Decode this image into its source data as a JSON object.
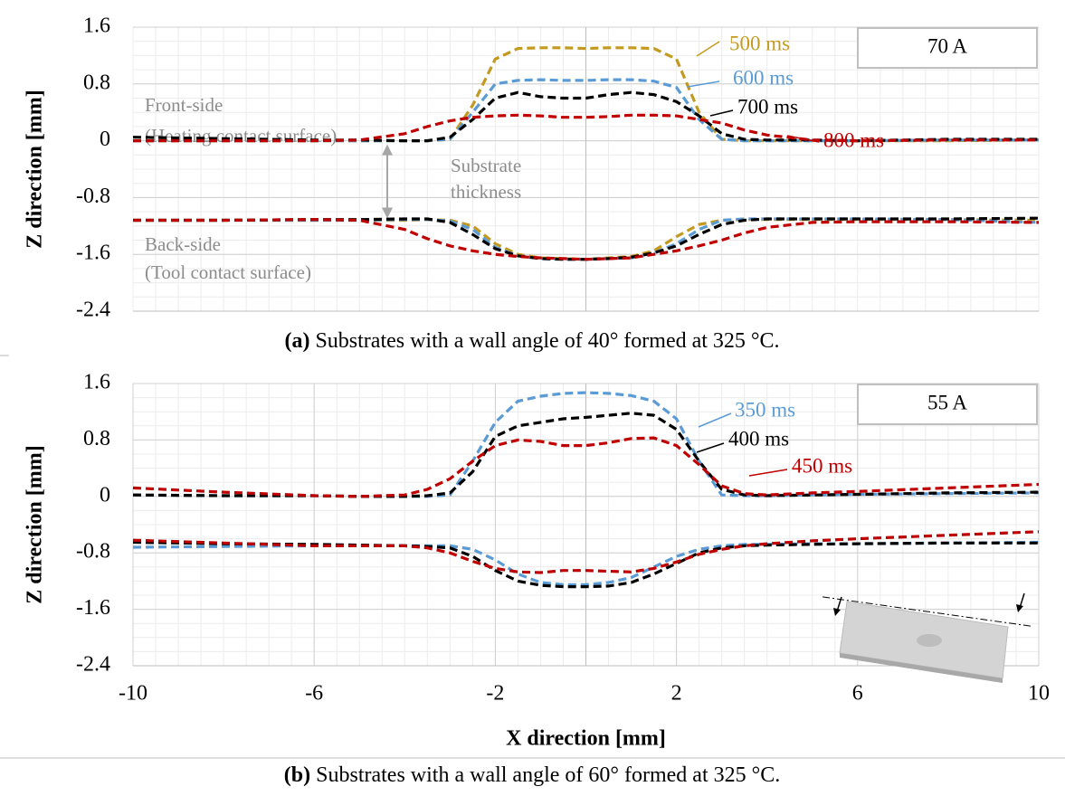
{
  "chart_data": [
    {
      "type": "line",
      "box_label": "70 A",
      "annotations": [
        "Front-side",
        "(Heating contact surface)",
        "Substrate",
        "thickness",
        "Back-side",
        "(Tool contact surface)"
      ],
      "caption_label": "(a)",
      "caption": " Substrates with a wall angle of 40° formed at 325 °C.",
      "ylabel": "Z direction [mm]",
      "xlim": [
        -10,
        10
      ],
      "ylim": [
        -2.4,
        1.6
      ],
      "yticks": [
        1.6,
        0.8,
        0,
        -0.8,
        -1.6,
        -2.4
      ],
      "grid": true,
      "x": [
        -10,
        -8,
        -6,
        -5,
        -4,
        -3.5,
        -3,
        -2.5,
        -2,
        -1.5,
        -1,
        -0.5,
        0,
        0.5,
        1,
        1.5,
        2,
        2.5,
        3,
        3.5,
        4,
        5,
        6,
        8,
        10
      ],
      "series": [
        {
          "name": "500 ms",
          "color": "#c39a1f",
          "values": [
            0,
            0,
            0,
            0,
            0,
            0,
            0.02,
            0.5,
            1.15,
            1.3,
            1.31,
            1.31,
            1.3,
            1.31,
            1.31,
            1.3,
            1.15,
            0.4,
            0.02,
            0,
            0,
            0,
            0,
            0,
            0.01
          ],
          "back_values": [
            -1.12,
            -1.12,
            -1.12,
            -1.12,
            -1.12,
            -1.11,
            -1.12,
            -1.2,
            -1.45,
            -1.6,
            -1.65,
            -1.66,
            -1.67,
            -1.65,
            -1.63,
            -1.55,
            -1.35,
            -1.18,
            -1.12,
            -1.11,
            -1.11,
            -1.11,
            -1.11,
            -1.11,
            -1.12
          ]
        },
        {
          "name": "600 ms",
          "color": "#5b9bd5",
          "values": [
            0,
            0,
            0,
            0,
            0,
            0,
            0.02,
            0.4,
            0.8,
            0.85,
            0.86,
            0.85,
            0.85,
            0.86,
            0.86,
            0.84,
            0.75,
            0.3,
            0.02,
            0,
            0,
            0,
            0,
            0.01,
            0.01
          ],
          "back_values": [
            -1.12,
            -1.12,
            -1.12,
            -1.12,
            -1.11,
            -1.11,
            -1.13,
            -1.25,
            -1.5,
            -1.62,
            -1.66,
            -1.67,
            -1.67,
            -1.66,
            -1.65,
            -1.58,
            -1.45,
            -1.25,
            -1.12,
            -1.1,
            -1.1,
            -1.1,
            -1.1,
            -1.11,
            -1.15
          ]
        },
        {
          "name": "700 ms",
          "color": "#000000",
          "values": [
            0.05,
            0.03,
            0.01,
            0.01,
            0,
            0,
            0.05,
            0.3,
            0.6,
            0.68,
            0.62,
            0.6,
            0.6,
            0.65,
            0.68,
            0.65,
            0.55,
            0.35,
            0.1,
            0.02,
            0.01,
            0.01,
            0,
            0.02,
            0.02
          ],
          "back_values": [
            -1.12,
            -1.12,
            -1.11,
            -1.11,
            -1.1,
            -1.1,
            -1.15,
            -1.32,
            -1.52,
            -1.62,
            -1.66,
            -1.67,
            -1.67,
            -1.66,
            -1.64,
            -1.58,
            -1.48,
            -1.32,
            -1.18,
            -1.12,
            -1.1,
            -1.1,
            -1.1,
            -1.1,
            -1.09
          ]
        },
        {
          "name": "800 ms",
          "color": "#c00000",
          "values": [
            0,
            0,
            0,
            0.01,
            0.1,
            0.2,
            0.28,
            0.33,
            0.35,
            0.36,
            0.35,
            0.33,
            0.33,
            0.34,
            0.36,
            0.36,
            0.35,
            0.3,
            0.25,
            0.15,
            0.08,
            0.01,
            0,
            0.01,
            0.01
          ],
          "back_values": [
            -1.12,
            -1.12,
            -1.11,
            -1.12,
            -1.25,
            -1.38,
            -1.48,
            -1.55,
            -1.6,
            -1.63,
            -1.65,
            -1.66,
            -1.67,
            -1.66,
            -1.65,
            -1.6,
            -1.55,
            -1.48,
            -1.4,
            -1.3,
            -1.22,
            -1.15,
            -1.14,
            -1.14,
            -1.15
          ]
        }
      ]
    },
    {
      "type": "line",
      "box_label": "55 A",
      "caption_label": "(b)",
      "caption": " Substrates with a wall angle of 60° formed at 325 °C.",
      "ylabel": "Z direction [mm]",
      "xlabel": "X direction [mm]",
      "xlim": [
        -10,
        10
      ],
      "xticks": [
        -10,
        -6,
        -2,
        2,
        6,
        10
      ],
      "ylim": [
        -2.4,
        1.6
      ],
      "yticks": [
        1.6,
        0.8,
        0,
        -0.8,
        -1.6,
        -2.4
      ],
      "grid": true,
      "x": [
        -10,
        -8,
        -6,
        -5,
        -4,
        -3.5,
        -3,
        -2.5,
        -2,
        -1.5,
        -1,
        -0.5,
        0,
        0.5,
        1,
        1.5,
        2,
        2.5,
        3,
        3.5,
        4,
        5,
        6,
        8,
        10
      ],
      "series": [
        {
          "name": "350 ms",
          "color": "#5b9bd5",
          "values": [
            0.02,
            0.01,
            0.01,
            0,
            0,
            0,
            0.02,
            0.5,
            1.05,
            1.35,
            1.42,
            1.46,
            1.47,
            1.46,
            1.43,
            1.35,
            1.1,
            0.5,
            0.02,
            0.01,
            0.01,
            0.02,
            0.03,
            0.04,
            0.05
          ],
          "back_values": [
            -0.72,
            -0.71,
            -0.7,
            -0.7,
            -0.7,
            -0.7,
            -0.7,
            -0.75,
            -0.9,
            -1.1,
            -1.22,
            -1.25,
            -1.25,
            -1.22,
            -1.15,
            -1.0,
            -0.85,
            -0.75,
            -0.7,
            -0.68,
            -0.68,
            -0.67,
            -0.67,
            -0.66,
            -0.65
          ]
        },
        {
          "name": "400 ms",
          "color": "#000000",
          "values": [
            0.02,
            0.01,
            0.01,
            0,
            0,
            0.01,
            0.05,
            0.35,
            0.85,
            1.0,
            1.05,
            1.1,
            1.12,
            1.15,
            1.18,
            1.15,
            0.95,
            0.5,
            0.1,
            0.02,
            0.01,
            0.02,
            0.03,
            0.05,
            0.06
          ],
          "back_values": [
            -0.65,
            -0.67,
            -0.68,
            -0.69,
            -0.7,
            -0.71,
            -0.73,
            -0.85,
            -1.05,
            -1.2,
            -1.26,
            -1.28,
            -1.28,
            -1.27,
            -1.22,
            -1.1,
            -0.95,
            -0.8,
            -0.73,
            -0.7,
            -0.69,
            -0.68,
            -0.67,
            -0.66,
            -0.66
          ]
        },
        {
          "name": "450 ms",
          "color": "#c00000",
          "values": [
            0.12,
            0.06,
            0.01,
            0,
            0.02,
            0.1,
            0.25,
            0.5,
            0.72,
            0.8,
            0.78,
            0.72,
            0.72,
            0.76,
            0.82,
            0.83,
            0.72,
            0.45,
            0.15,
            0.04,
            0.02,
            0.05,
            0.07,
            0.12,
            0.17
          ],
          "back_values": [
            -0.62,
            -0.66,
            -0.7,
            -0.7,
            -0.7,
            -0.73,
            -0.8,
            -0.92,
            -1.02,
            -1.07,
            -1.08,
            -1.05,
            -1.05,
            -1.06,
            -1.07,
            -1.02,
            -0.93,
            -0.82,
            -0.75,
            -0.7,
            -0.67,
            -0.63,
            -0.6,
            -0.55,
            -0.5
          ]
        }
      ]
    }
  ]
}
